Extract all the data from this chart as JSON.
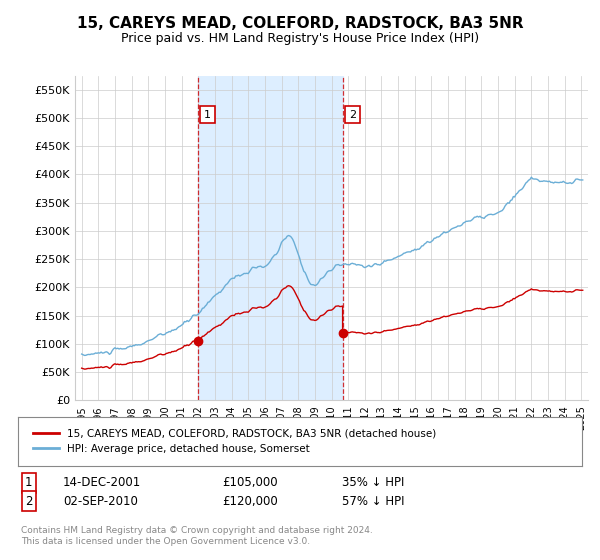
{
  "title": "15, CAREYS MEAD, COLEFORD, RADSTOCK, BA3 5NR",
  "subtitle": "Price paid vs. HM Land Registry's House Price Index (HPI)",
  "ylabel_ticks": [
    "£0",
    "£50K",
    "£100K",
    "£150K",
    "£200K",
    "£250K",
    "£300K",
    "£350K",
    "£400K",
    "£450K",
    "£500K",
    "£550K"
  ],
  "ytick_values": [
    0,
    50000,
    100000,
    150000,
    200000,
    250000,
    300000,
    350000,
    400000,
    450000,
    500000,
    550000
  ],
  "ylim": [
    0,
    575000
  ],
  "hpi_color": "#6baed6",
  "price_color": "#cc0000",
  "shade_color": "#ddeeff",
  "marker1_date": 2001.958,
  "marker1_price": 105000,
  "marker1_label": "1",
  "marker2_date": 2010.667,
  "marker2_price": 120000,
  "marker2_label": "2",
  "legend_label1": "15, CAREYS MEAD, COLEFORD, RADSTOCK, BA3 5NR (detached house)",
  "legend_label2": "HPI: Average price, detached house, Somerset",
  "table_row1": [
    "1",
    "14-DEC-2001",
    "£105,000",
    "35% ↓ HPI"
  ],
  "table_row2": [
    "2",
    "02-SEP-2010",
    "£120,000",
    "57% ↓ HPI"
  ],
  "footnote": "Contains HM Land Registry data © Crown copyright and database right 2024.\nThis data is licensed under the Open Government Licence v3.0.",
  "background_color": "#ffffff",
  "grid_color": "#cccccc"
}
